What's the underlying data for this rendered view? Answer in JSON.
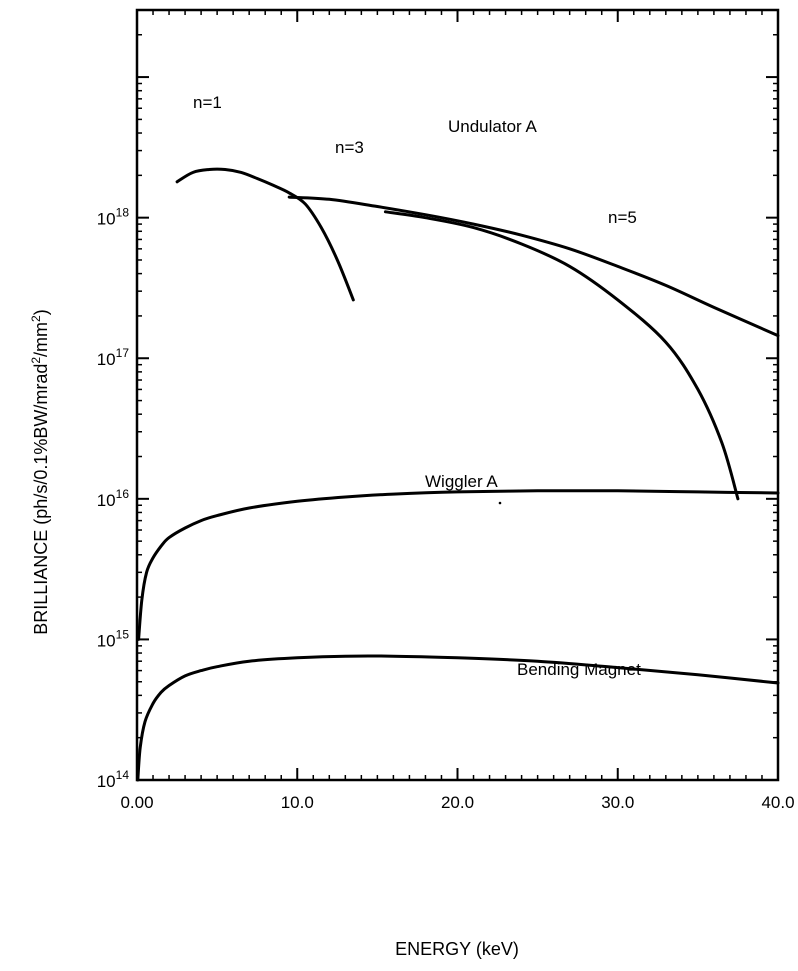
{
  "chart_data": {
    "type": "line",
    "xlabel": "ENERGY (keV)",
    "ylabel_parts": {
      "main": "BRILLIANCE (ph/s/0.1%BW/mrad",
      "sup1": "2",
      "mid": "/mm",
      "sup2": "2"
    },
    "xlim": [
      0,
      40
    ],
    "ylim": [
      100000000000000.0,
      3e+19
    ],
    "yscale": "log",
    "grid": false,
    "x_ticks": [
      "0.00",
      "10.0",
      "20.0",
      "30.0",
      "40.0"
    ],
    "x_tick_values": [
      0,
      10,
      20,
      30,
      40
    ],
    "y_ticks": [
      {
        "base": "10",
        "exp": "14",
        "value": 100000000000000.0
      },
      {
        "base": "10",
        "exp": "15",
        "value": 1000000000000000.0
      },
      {
        "base": "10",
        "exp": "16",
        "value": 1e+16
      },
      {
        "base": "10",
        "exp": "17",
        "value": 1e+17
      },
      {
        "base": "10",
        "exp": "18",
        "value": 1e+18
      }
    ],
    "series": [
      {
        "x": [
          2.5,
          3.5,
          4.5,
          5.5,
          6.5,
          7.5,
          8.5,
          9.5,
          10.5,
          11.5,
          12.5,
          13.5
        ],
        "y": [
          1.8e+18,
          2.1e+18,
          2.2e+18,
          2.2e+18,
          2.1e+18,
          1.9e+18,
          1.7e+18,
          1.5e+18,
          1.25e+18,
          8.5e+17,
          5e+17,
          2.6e+17
        ]
      },
      {
        "x": [
          9.5,
          12,
          15,
          18,
          21,
          24,
          27,
          30,
          33,
          36,
          40
        ],
        "y": [
          1.4e+18,
          1.35e+18,
          1.2e+18,
          1.05e+18,
          9e+17,
          7.5e+17,
          6e+17,
          4.5e+17,
          3.3e+17,
          2.3e+17,
          1.45e+17
        ]
      },
      {
        "x": [
          15.5,
          18,
          21,
          24,
          27,
          30,
          33,
          35,
          36.5,
          37.5
        ],
        "y": [
          1.1e+18,
          1e+18,
          8.5e+17,
          6.5e+17,
          4.5e+17,
          2.6e+17,
          1.3e+17,
          6e+16,
          2.5e+16,
          1e+16
        ]
      },
      {
        "x": [
          0.1,
          0.3,
          0.6,
          1,
          1.5,
          2,
          3,
          4,
          5,
          7,
          10,
          13,
          16,
          20,
          25,
          30,
          35,
          40
        ],
        "y": [
          1000000000000000.0,
          1900000000000000.0,
          3000000000000000.0,
          3800000000000000.0,
          4600000000000000.0,
          5300000000000000.0,
          6200000000000000.0,
          7000000000000000.0,
          7600000000000000.0,
          8600000000000000.0,
          9600000000000000.0,
          1.03e+16,
          1.08e+16,
          1.12e+16,
          1.14e+16,
          1.14e+16,
          1.12e+16,
          1.1e+16
        ]
      },
      {
        "x": [
          0.05,
          0.2,
          0.5,
          1,
          1.5,
          2,
          3,
          4,
          5,
          7,
          10,
          13,
          16,
          20,
          25,
          30,
          35,
          40
        ],
        "y": [
          100000000000000.0,
          170000000000000.0,
          260000000000000.0,
          350000000000000.0,
          420000000000000.0,
          470000000000000.0,
          550000000000000.0,
          600000000000000.0,
          640000000000000.0,
          700000000000000.0,
          740000000000000.0,
          760000000000000.0,
          760000000000000.0,
          740000000000000.0,
          700000000000000.0,
          630000000000000.0,
          560000000000000.0,
          490000000000000.0
        ]
      }
    ],
    "annotations": {
      "n1": "n=1",
      "n3": "n=3",
      "n5": "n=5",
      "undulator": "Undulator A",
      "wiggler": "Wiggler A",
      "bending": "Bending Magnet"
    }
  }
}
